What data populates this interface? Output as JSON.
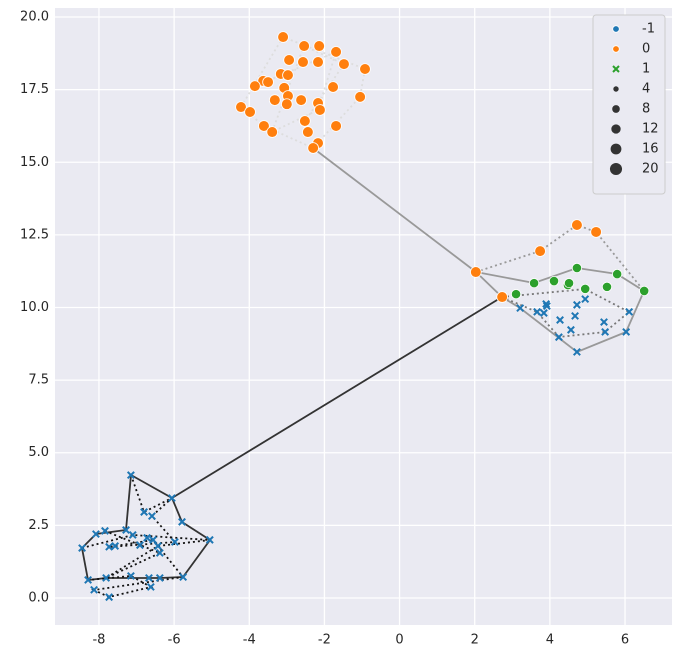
{
  "chart_data": {
    "type": "scatter",
    "xlim": [
      -9.17,
      7.25
    ],
    "ylim": [
      -0.93,
      20.31
    ],
    "xticks": [
      -8,
      -6,
      -4,
      -2,
      0,
      2,
      4,
      6
    ],
    "yticks": [
      {
        "value": 0,
        "label": "0.0"
      },
      2.5,
      {
        "value": 5,
        "label": "5.0"
      },
      7.5,
      {
        "value": 10,
        "label": "10.0"
      },
      12.5,
      {
        "value": 15,
        "label": "15.0"
      },
      17.5,
      {
        "value": 20,
        "label": "20.0"
      }
    ],
    "grid": true,
    "legend": "upper right",
    "series": [
      {
        "name": "-1",
        "color": "#1f77b4",
        "marker": "x",
        "legend_marker": "circle",
        "x": [
          3.21,
          3.66,
          3.84,
          3.9,
          4.27,
          4.24,
          4.56,
          4.67,
          4.72,
          4.72,
          4.94,
          5.44,
          5.47,
          6.03,
          6.11,
          3.92,
          -7.15,
          -6.06,
          -6.8,
          -6.59,
          -5.79,
          -8.08,
          -7.84,
          -7.28,
          -7.1,
          -6.72,
          -5.05,
          -5.98,
          -6.56,
          -8.45,
          -7.73,
          -7.57,
          -6.43,
          -6.91,
          -6.38,
          -8.29,
          -7.81,
          -7.15,
          -6.67,
          -6.38,
          -5.76,
          -6.62,
          -8.13,
          -7.73
        ],
        "values": [
          9.98,
          9.85,
          9.81,
          10.12,
          9.57,
          8.98,
          9.23,
          9.71,
          10.09,
          8.47,
          10.29,
          9.5,
          9.16,
          9.16,
          9.85,
          10.05,
          4.23,
          3.44,
          2.96,
          2.82,
          2.62,
          2.2,
          2.31,
          2.34,
          2.17,
          2.07,
          2.0,
          1.93,
          2.0,
          1.72,
          1.76,
          1.79,
          1.79,
          1.82,
          1.55,
          0.62,
          0.69,
          0.76,
          0.69,
          0.69,
          0.72,
          0.38,
          0.28,
          0.03
        ]
      },
      {
        "name": "0",
        "color": "#ff7f0e",
        "marker": "circle",
        "legend_marker": "circle",
        "x": [
          -3.1,
          -2.54,
          -2.14,
          -1.69,
          -2.94,
          -2.57,
          -2.17,
          -1.48,
          -0.92,
          -3.16,
          -2.97,
          -3.63,
          -3.5,
          -3.85,
          -1.77,
          -3.07,
          -3.32,
          -2.97,
          -2.62,
          -2.17,
          -3.0,
          -1.05,
          -4.22,
          -3.98,
          -2.12,
          -2.52,
          -3.61,
          -1.69,
          -3.39,
          -2.44,
          -2.17,
          -2.3,
          2.03,
          2.73,
          3.74,
          4.72,
          5.23
        ],
        "values": [
          19.31,
          19.0,
          19.0,
          18.8,
          18.52,
          18.45,
          18.45,
          18.38,
          18.21,
          18.04,
          18.0,
          17.8,
          17.76,
          17.62,
          17.59,
          17.56,
          17.14,
          17.28,
          17.14,
          17.04,
          17.0,
          17.25,
          16.9,
          16.73,
          16.8,
          16.42,
          16.25,
          16.25,
          16.04,
          16.04,
          15.66,
          15.49,
          11.22,
          10.36,
          11.94,
          12.84,
          12.6
        ]
      },
      {
        "name": "1",
        "color": "#2ca02c",
        "marker": "circle",
        "legend_marker": "x",
        "x": [
          3.1,
          3.58,
          4.11,
          4.48,
          4.72,
          4.94,
          5.52,
          5.79,
          6.51,
          4.51
        ],
        "values": [
          10.46,
          10.84,
          10.91,
          10.77,
          11.36,
          10.64,
          10.71,
          11.15,
          10.57,
          10.84
        ]
      }
    ],
    "point_sizes": [
      8,
      16,
      12
    ],
    "size_legend": [
      4,
      8,
      12,
      16,
      20
    ]
  }
}
